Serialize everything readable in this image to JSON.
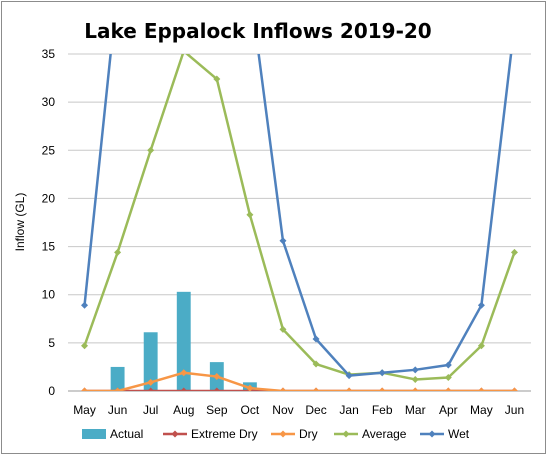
{
  "chart_data": {
    "type": "bar",
    "title": "Lake Eppalock Inflows 2019-20",
    "xlabel": "",
    "ylabel": "Inflow (GL)",
    "ylim": [
      0,
      35
    ],
    "yticks": [
      0,
      5,
      10,
      15,
      20,
      25,
      30,
      35
    ],
    "categories": [
      "May",
      "Jun",
      "Jul",
      "Aug",
      "Sep",
      "Oct",
      "Nov",
      "Dec",
      "Jan",
      "Feb",
      "Mar",
      "Apr",
      "May",
      "Jun"
    ],
    "grid": true,
    "legend_position": "bottom",
    "series": [
      {
        "name": "Actual",
        "kind": "bar",
        "color": "#4bacc6",
        "values": [
          null,
          2.5,
          6.1,
          10.3,
          3.0,
          0.9,
          null,
          null,
          null,
          null,
          null,
          null,
          null,
          null
        ]
      },
      {
        "name": "Extreme Dry",
        "kind": "line",
        "color": "#c0504d",
        "values": [
          0,
          0,
          0,
          0,
          0,
          0,
          0,
          0,
          0,
          0,
          0,
          0,
          0,
          0
        ]
      },
      {
        "name": "Dry",
        "kind": "line",
        "color": "#f79646",
        "values": [
          0,
          0,
          0.9,
          1.9,
          1.5,
          0.3,
          0,
          0,
          0,
          0,
          0,
          0,
          0,
          0
        ]
      },
      {
        "name": "Average",
        "kind": "line",
        "color": "#9bbb59",
        "values": [
          4.7,
          14.4,
          25.0,
          35.3,
          32.4,
          18.3,
          6.4,
          2.8,
          1.7,
          1.9,
          1.2,
          1.4,
          4.7,
          14.4
        ]
      },
      {
        "name": "Wet",
        "kind": "line",
        "color": "#4f81bd",
        "values": [
          8.9,
          42.0,
          null,
          null,
          null,
          42.0,
          15.6,
          5.4,
          1.6,
          1.9,
          2.2,
          2.7,
          8.9,
          38.0
        ]
      }
    ]
  }
}
